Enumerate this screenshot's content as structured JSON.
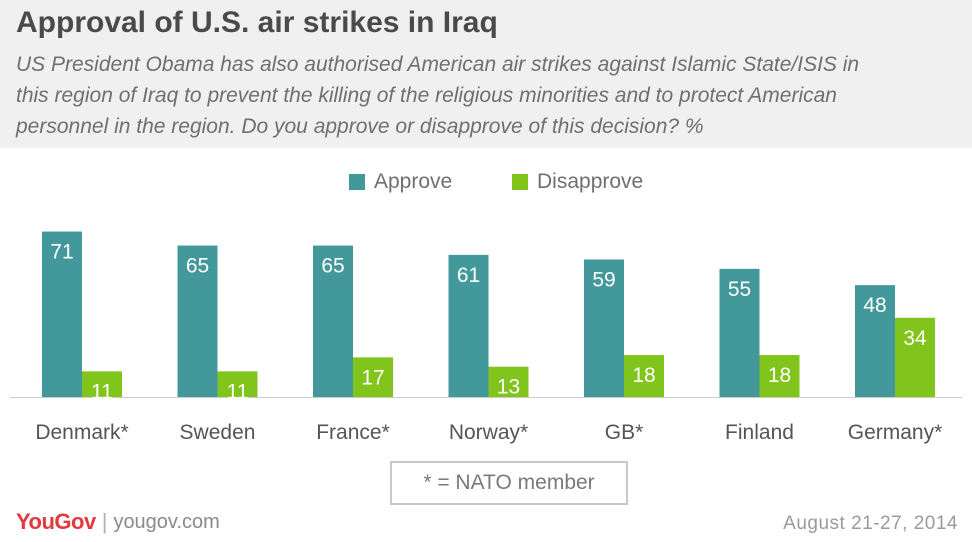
{
  "header": {
    "title": "Approval of U.S. air strikes in Iraq",
    "subtitle_lines": [
      "US President Obama has also authorised American air strikes against Islamic State/ISIS in",
      "this region of Iraq to prevent the killing of the religious minorities and to protect American",
      "personnel in the region. Do you approve or disapprove of this decision? %"
    ]
  },
  "legend": {
    "approve": "Approve",
    "disapprove": "Disapprove"
  },
  "colors": {
    "approve": "#43989b",
    "disapprove": "#80c41c",
    "axis": "#cccccc",
    "header_bg": "#f0f0f0"
  },
  "chart_data": {
    "type": "bar",
    "categories": [
      "Denmark*",
      "Sweden",
      "France*",
      "Norway*",
      "GB*",
      "Finland",
      "Germany*"
    ],
    "series": [
      {
        "name": "Approve",
        "values": [
          71,
          65,
          65,
          61,
          59,
          55,
          48
        ]
      },
      {
        "name": "Disapprove",
        "values": [
          11,
          11,
          17,
          13,
          18,
          18,
          34
        ]
      }
    ],
    "ylim": [
      0,
      75
    ],
    "grid": false,
    "legend_position": "top-center",
    "data_labels": true
  },
  "footnote": "* = NATO member",
  "footer": {
    "logo": "YouGov",
    "separator": "|",
    "site": "yougov.com",
    "date": "August 21-27, 2014"
  }
}
